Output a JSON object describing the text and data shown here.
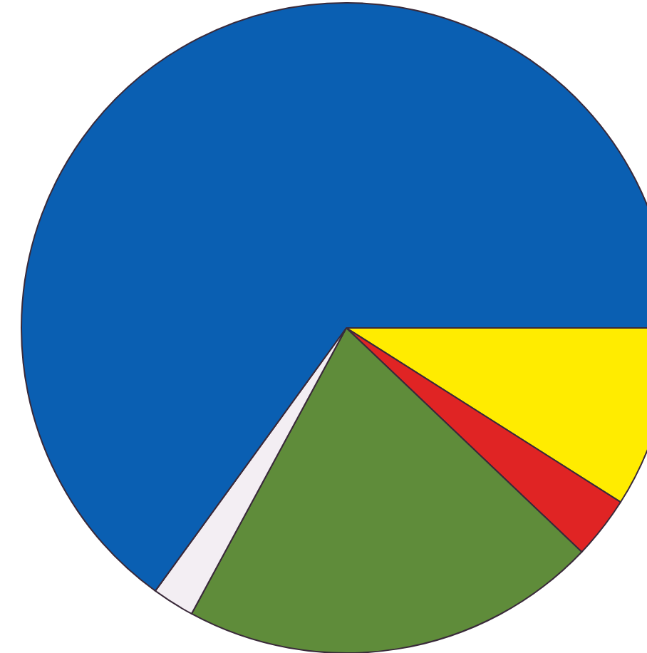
{
  "chart_data": {
    "type": "pie",
    "categories": [
      null,
      null,
      null,
      null,
      null
    ],
    "values": [
      9.0,
      3.1,
      20.8,
      2.1,
      65.0
    ],
    "colors": [
      "#ffec00",
      "#e02424",
      "#5f8c3a",
      "#f3eef3",
      "#0a5fb2"
    ]
  }
}
